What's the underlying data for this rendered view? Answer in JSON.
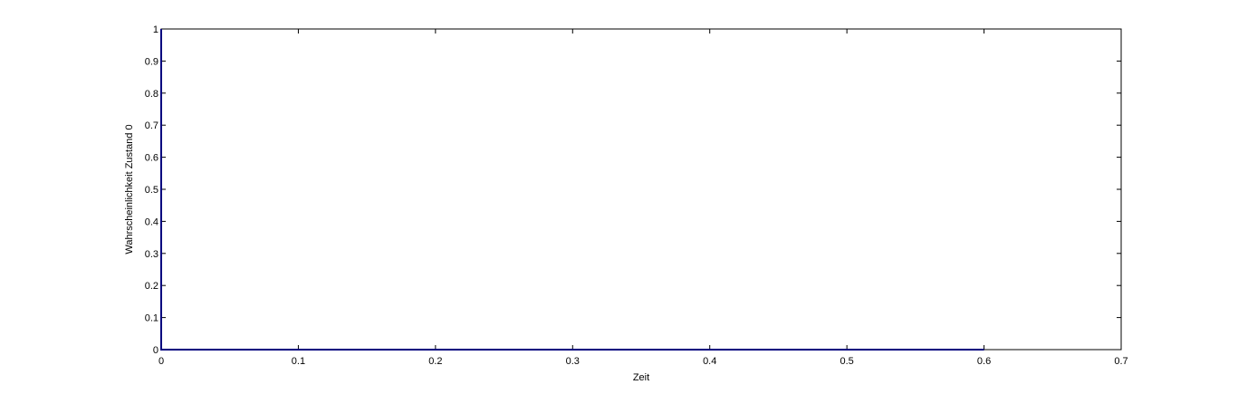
{
  "chart_data": {
    "type": "line",
    "title": "",
    "xlabel": "Zeit",
    "ylabel": "Wahrscheinlichkeit Zustand 0",
    "xlim": [
      0,
      0.7
    ],
    "ylim": [
      0,
      1
    ],
    "x_ticks": [
      0,
      0.1,
      0.2,
      0.3,
      0.4,
      0.5,
      0.6,
      0.7
    ],
    "x_tick_labels": [
      "0",
      "0.1",
      "0.2",
      "0.3",
      "0.4",
      "0.5",
      "0.6",
      "0.7"
    ],
    "y_ticks": [
      0,
      0.1,
      0.2,
      0.3,
      0.4,
      0.5,
      0.6,
      0.7,
      0.8,
      0.9,
      1
    ],
    "y_tick_labels": [
      "0",
      "0.1",
      "0.2",
      "0.3",
      "0.4",
      "0.5",
      "0.6",
      "0.7",
      "0.8",
      "0.9",
      "1"
    ],
    "grid": false,
    "series": [
      {
        "color": "#00007f",
        "x": [
          0,
          0,
          0.6
        ],
        "y": [
          1,
          0,
          0
        ]
      }
    ]
  }
}
